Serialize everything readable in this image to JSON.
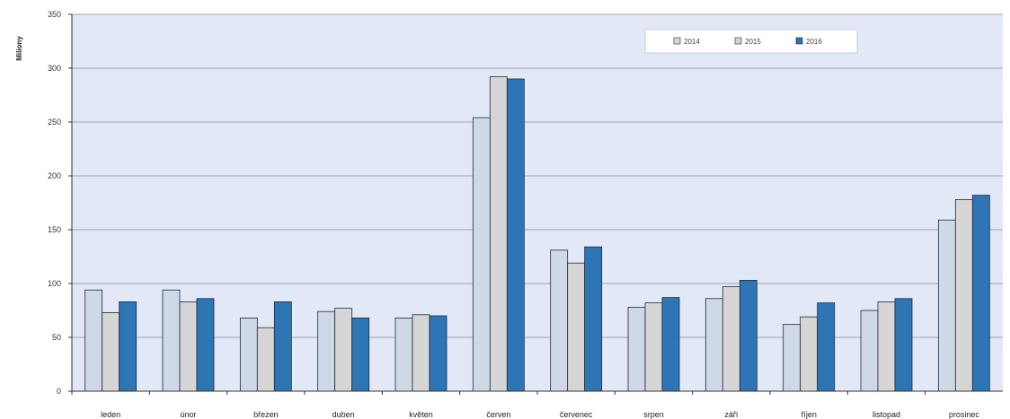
{
  "chart_data": {
    "type": "bar",
    "ylabel": "Miliony",
    "ylim": [
      0,
      350
    ],
    "yticks": [
      0,
      50,
      100,
      150,
      200,
      250,
      300,
      350
    ],
    "grid": true,
    "legend_position": "top-right",
    "categories": [
      "leden",
      "únor",
      "březen",
      "duben",
      "květen",
      "červen",
      "červenec",
      "srpen",
      "září",
      "říjen",
      "listopad",
      "prosinec"
    ],
    "series": [
      {
        "name": "2014",
        "color": "#cfd8e6",
        "values": [
          94,
          94,
          68,
          74,
          68,
          254,
          131,
          78,
          86,
          62,
          75,
          159
        ]
      },
      {
        "name": "2015",
        "color": "#d6d6d6",
        "values": [
          73,
          83,
          59,
          77,
          71,
          292,
          119,
          82,
          97,
          69,
          83,
          178
        ]
      },
      {
        "name": "2016",
        "color": "#2e75b6",
        "values": [
          83,
          86,
          83,
          68,
          70,
          290,
          134,
          87,
          103,
          82,
          86,
          182
        ]
      }
    ]
  },
  "colors": {
    "plot_background": "#e2e8f5",
    "gridline": "#9aa4b8",
    "axis": "#333333"
  }
}
